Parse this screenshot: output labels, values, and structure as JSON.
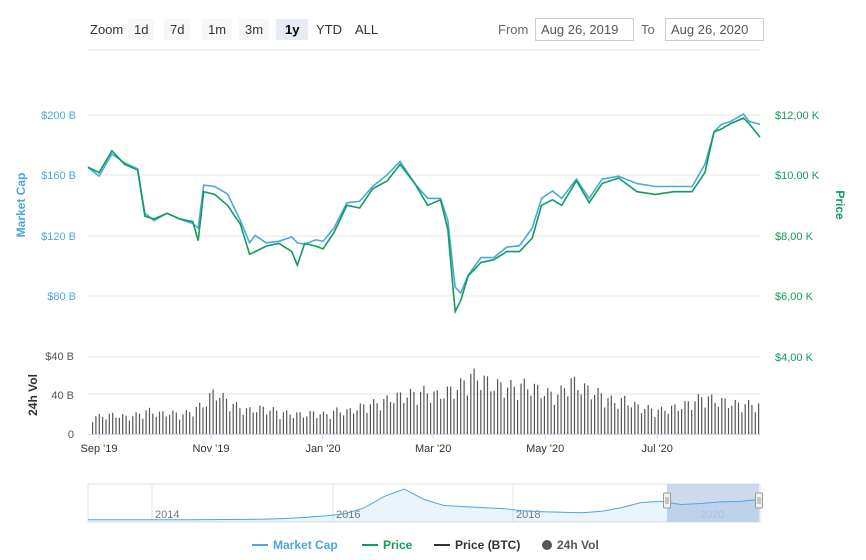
{
  "toolbar": {
    "zoom_label": "Zoom",
    "zoom_buttons": [
      "1d",
      "7d",
      "1m",
      "3m",
      "1y",
      "YTD",
      "ALL"
    ],
    "active_zoom": "1y",
    "from_label": "From",
    "from_value": "Aug 26, 2019",
    "to_label": "To",
    "to_value": "Aug 26, 2020"
  },
  "colors": {
    "market_cap": "#4aa8e0",
    "price": "#0f9d58",
    "price_btc": "#333333",
    "volume": "#555555",
    "navigator_fill": "#c7d2ea"
  },
  "chart_data": {
    "type": "line",
    "x": [
      "2019-08-26",
      "2019-09-01",
      "2019-09-08",
      "2019-09-15",
      "2019-09-22",
      "2019-09-26",
      "2019-10-01",
      "2019-10-08",
      "2019-10-15",
      "2019-10-22",
      "2019-10-25",
      "2019-10-28",
      "2019-11-03",
      "2019-11-10",
      "2019-11-17",
      "2019-11-22",
      "2019-11-25",
      "2019-12-01",
      "2019-12-08",
      "2019-12-15",
      "2019-12-18",
      "2019-12-22",
      "2019-12-28",
      "2020-01-01",
      "2020-01-07",
      "2020-01-14",
      "2020-01-21",
      "2020-01-28",
      "2020-02-05",
      "2020-02-12",
      "2020-02-20",
      "2020-02-27",
      "2020-03-05",
      "2020-03-09",
      "2020-03-12",
      "2020-03-13",
      "2020-03-16",
      "2020-03-20",
      "2020-03-27",
      "2020-04-03",
      "2020-04-10",
      "2020-04-17",
      "2020-04-24",
      "2020-04-29",
      "2020-05-05",
      "2020-05-10",
      "2020-05-18",
      "2020-05-25",
      "2020-06-01",
      "2020-06-10",
      "2020-06-20",
      "2020-06-30",
      "2020-07-10",
      "2020-07-20",
      "2020-07-27",
      "2020-08-01",
      "2020-08-05",
      "2020-08-10",
      "2020-08-17",
      "2020-08-20",
      "2020-08-26"
    ],
    "series": [
      {
        "name": "Market Cap",
        "axis": "Market Cap",
        "values": [
          181,
          175,
          190,
          184,
          180,
          150,
          145,
          150,
          146,
          143,
          140,
          169,
          168,
          163,
          145,
          130,
          135,
          130,
          131,
          134,
          130,
          129,
          132,
          131,
          140,
          157,
          158,
          168,
          176,
          185,
          170,
          160,
          160,
          145,
          110,
          100,
          96,
          108,
          120,
          120,
          127,
          128,
          140,
          160,
          165,
          160,
          173,
          160,
          173,
          175,
          170,
          168,
          168,
          168,
          183,
          205,
          210,
          212,
          217,
          212,
          210
        ]
      },
      {
        "name": "Price",
        "axis": "Price",
        "values": [
          10200,
          10000,
          10800,
          10300,
          10100,
          8400,
          8300,
          8500,
          8300,
          8200,
          7500,
          9300,
          9200,
          8800,
          8100,
          7000,
          7100,
          7300,
          7400,
          7100,
          6600,
          7400,
          7300,
          7200,
          7800,
          8800,
          8700,
          9400,
          9700,
          10300,
          9600,
          8800,
          9000,
          7900,
          5600,
          4900,
          5300,
          6200,
          6700,
          6800,
          7100,
          7100,
          7600,
          8800,
          9000,
          8800,
          9700,
          8900,
          9600,
          9800,
          9300,
          9200,
          9300,
          9300,
          10000,
          11500,
          11600,
          11800,
          12000,
          11800,
          11300
        ]
      },
      {
        "name": "24h Vol",
        "axis": "24h Vol",
        "values": [
          16,
          17,
          18,
          16,
          18,
          22,
          19,
          20,
          18,
          22,
          28,
          40,
          32,
          26,
          22,
          24,
          23,
          20,
          19,
          18,
          20,
          18,
          22,
          21,
          25,
          28,
          30,
          34,
          36,
          38,
          40,
          36,
          40,
          44,
          55,
          52,
          46,
          45,
          44,
          46,
          42,
          38,
          37,
          50,
          44,
          40,
          36,
          30,
          32,
          26,
          24,
          22,
          24,
          26,
          30,
          35,
          32,
          30,
          28,
          28,
          27
        ]
      }
    ],
    "price_btc_legend": "Price (BTC)",
    "y_left": {
      "title": "Market Cap",
      "ticks": [
        "$80 B",
        "$120 B",
        "$160 B",
        "$200 B"
      ],
      "range": [
        67,
        240
      ]
    },
    "y_right": {
      "title": "Price",
      "ticks": [
        "$4,00 K",
        "$6,00 K",
        "$8,00 K",
        "$10,00 K",
        "$12,00 K"
      ],
      "range": [
        4000,
        13400
      ]
    },
    "y_volume": {
      "title": "24h Vol",
      "ticks": [
        "0",
        "40 B",
        "$40 B"
      ],
      "range": [
        0,
        80
      ]
    },
    "x_ticks": [
      {
        "label": "Sep '19",
        "date": "2019-09-01"
      },
      {
        "label": "Nov '19",
        "date": "2019-11-01"
      },
      {
        "label": "Jan '20",
        "date": "2020-01-01"
      },
      {
        "label": "Mar '20",
        "date": "2020-03-01"
      },
      {
        "label": "May '20",
        "date": "2020-05-01"
      },
      {
        "label": "Jul '20",
        "date": "2020-07-01"
      }
    ],
    "navigator": {
      "ticks": [
        "2014",
        "2016",
        "2018",
        "2020"
      ],
      "series": [
        2,
        2,
        2,
        3,
        3,
        3,
        4,
        5,
        6,
        9,
        15,
        25,
        40,
        60,
        120,
        230,
        300,
        200,
        140,
        130,
        120,
        110,
        90,
        80,
        75,
        70,
        85,
        120,
        170,
        180,
        150,
        160,
        175,
        180,
        200
      ]
    },
    "legend": [
      "Market Cap",
      "Price",
      "Price (BTC)",
      "24h Vol"
    ],
    "grid": true,
    "legend_position": "bottom"
  }
}
